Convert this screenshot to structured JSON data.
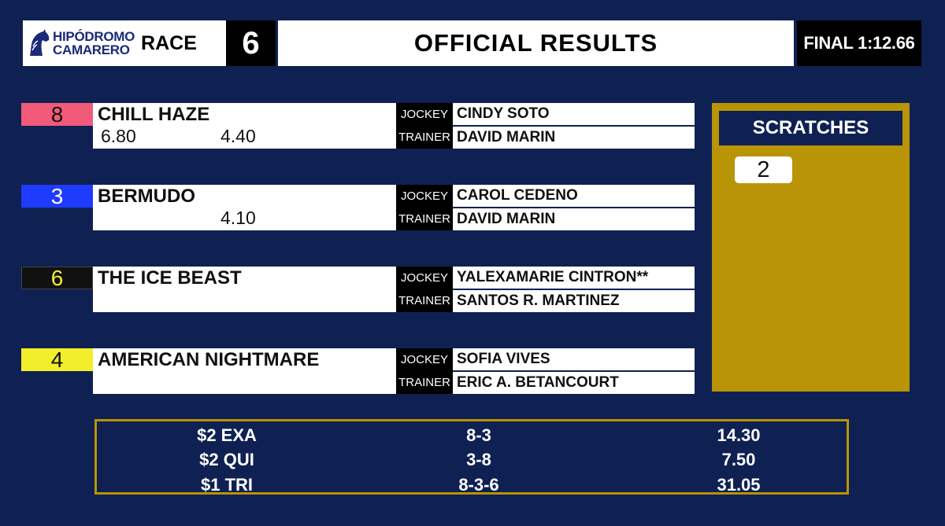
{
  "header": {
    "logo_line1": "HIPÓDROMO",
    "logo_line2": "CAMARERO",
    "race_label": "RACE",
    "race_number": "6",
    "title": "OFFICIAL RESULTS",
    "final_time": "FINAL 1:12.66"
  },
  "colors": {
    "background": "#0f2152",
    "gold": "#b89406",
    "pp_8": "#f25a7a",
    "pp_3": "#1f3bff",
    "pp_6": "#111111",
    "pp_4": "#f3ee2c"
  },
  "finishers": [
    {
      "program": "8",
      "horse": "CHILL HAZE",
      "win": "6.80",
      "place": "4.40",
      "show": "",
      "jockey_label": "JOCKEY",
      "jockey": "CINDY SOTO",
      "trainer_label": "TRAINER",
      "trainer": "DAVID MARIN"
    },
    {
      "program": "3",
      "horse": "BERMUDO",
      "win": "",
      "place": "4.10",
      "show": "",
      "jockey_label": "JOCKEY",
      "jockey": "CAROL CEDENO",
      "trainer_label": "TRAINER",
      "trainer": "DAVID MARIN"
    },
    {
      "program": "6",
      "horse": "THE ICE BEAST",
      "win": "",
      "place": "",
      "show": "",
      "jockey_label": "JOCKEY",
      "jockey": "YALEXAMARIE CINTRON**",
      "trainer_label": "TRAINER",
      "trainer": "SANTOS R. MARTINEZ"
    },
    {
      "program": "4",
      "horse": "AMERICAN NIGHTMARE",
      "win": "",
      "place": "",
      "show": "",
      "jockey_label": "JOCKEY",
      "jockey": "SOFIA VIVES",
      "trainer_label": "TRAINER",
      "trainer": "ERIC A. BETANCOURT"
    }
  ],
  "scratches": {
    "title": "SCRATCHES",
    "items": [
      "2"
    ]
  },
  "exotics": [
    {
      "type": "$2 EXA",
      "combination": "8-3",
      "payout": "14.30"
    },
    {
      "type": "$2 QUI",
      "combination": "3-8",
      "payout": "7.50"
    },
    {
      "type": "$1 TRI",
      "combination": "8-3-6",
      "payout": "31.05"
    }
  ]
}
